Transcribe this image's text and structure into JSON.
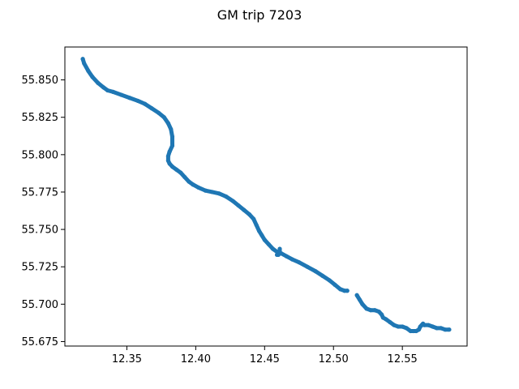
{
  "chart_data": {
    "type": "scatter",
    "title": "GM trip 7203",
    "xlabel": "",
    "ylabel": "",
    "xlim": [
      12.305,
      12.597
    ],
    "ylim": [
      55.672,
      55.872
    ],
    "xticks": [
      12.35,
      12.4,
      12.45,
      12.5,
      12.55
    ],
    "xtick_labels": [
      "12.35",
      "12.40",
      "12.45",
      "12.50",
      "12.55"
    ],
    "yticks": [
      55.675,
      55.7,
      55.725,
      55.75,
      55.775,
      55.8,
      55.825,
      55.85
    ],
    "ytick_labels": [
      "55.675",
      "55.700",
      "55.725",
      "55.750",
      "55.775",
      "55.800",
      "55.825",
      "55.850"
    ],
    "grid": false,
    "legend": "none",
    "series": [
      {
        "color": "#1f77b4",
        "segments": [
          {
            "x": [
              12.318,
              12.319,
              12.322,
              12.325,
              12.329,
              12.333,
              12.336,
              12.34,
              12.346,
              12.352,
              12.358,
              12.363,
              12.368,
              12.373,
              12.377,
              12.38,
              12.382,
              12.383,
              12.383,
              12.381,
              12.38,
              12.38,
              12.381,
              12.383,
              12.386,
              12.389,
              12.392,
              12.395,
              12.398,
              12.402,
              12.407,
              12.412,
              12.417,
              12.422,
              12.427,
              12.431,
              12.435,
              12.439,
              12.442,
              12.444,
              12.446,
              12.448,
              12.45,
              12.453,
              12.456,
              12.459,
              12.462,
              12.466,
              12.47,
              12.475,
              12.481,
              12.487,
              12.492,
              12.497,
              12.501,
              12.505,
              12.508,
              12.51
            ],
            "y": [
              55.864,
              55.861,
              55.856,
              55.852,
              55.848,
              55.845,
              55.843,
              55.842,
              55.84,
              55.838,
              55.836,
              55.834,
              55.831,
              55.828,
              55.825,
              55.821,
              55.817,
              55.812,
              55.806,
              55.802,
              55.799,
              55.796,
              55.794,
              55.792,
              55.79,
              55.788,
              55.785,
              55.782,
              55.78,
              55.778,
              55.776,
              55.775,
              55.774,
              55.772,
              55.769,
              55.766,
              55.763,
              55.76,
              55.757,
              55.753,
              55.749,
              55.746,
              55.743,
              55.74,
              55.737,
              55.735,
              55.734,
              55.732,
              55.73,
              55.728,
              55.725,
              55.722,
              55.719,
              55.716,
              55.713,
              55.71,
              55.709,
              55.709
            ]
          },
          {
            "x": [
              12.459,
              12.46,
              12.461,
              12.461
            ],
            "y": [
              55.733,
              55.733,
              55.734,
              55.737
            ]
          },
          {
            "x": [
              12.517,
              12.519,
              12.521,
              12.524,
              12.527,
              12.53,
              12.533,
              12.535,
              12.536,
              12.538,
              12.541,
              12.544,
              12.547,
              12.55,
              12.553,
              12.556,
              12.558,
              12.56,
              12.562,
              12.563,
              12.564,
              12.565,
              12.566,
              12.569,
              12.572,
              12.575,
              12.578,
              12.581,
              12.584
            ],
            "y": [
              55.706,
              55.703,
              55.7,
              55.697,
              55.696,
              55.696,
              55.695,
              55.693,
              55.691,
              55.69,
              55.688,
              55.686,
              55.685,
              55.685,
              55.684,
              55.682,
              55.682,
              55.682,
              55.683,
              55.685,
              55.686,
              55.687,
              55.686,
              55.686,
              55.685,
              55.684,
              55.684,
              55.683,
              55.683
            ]
          }
        ]
      }
    ]
  }
}
